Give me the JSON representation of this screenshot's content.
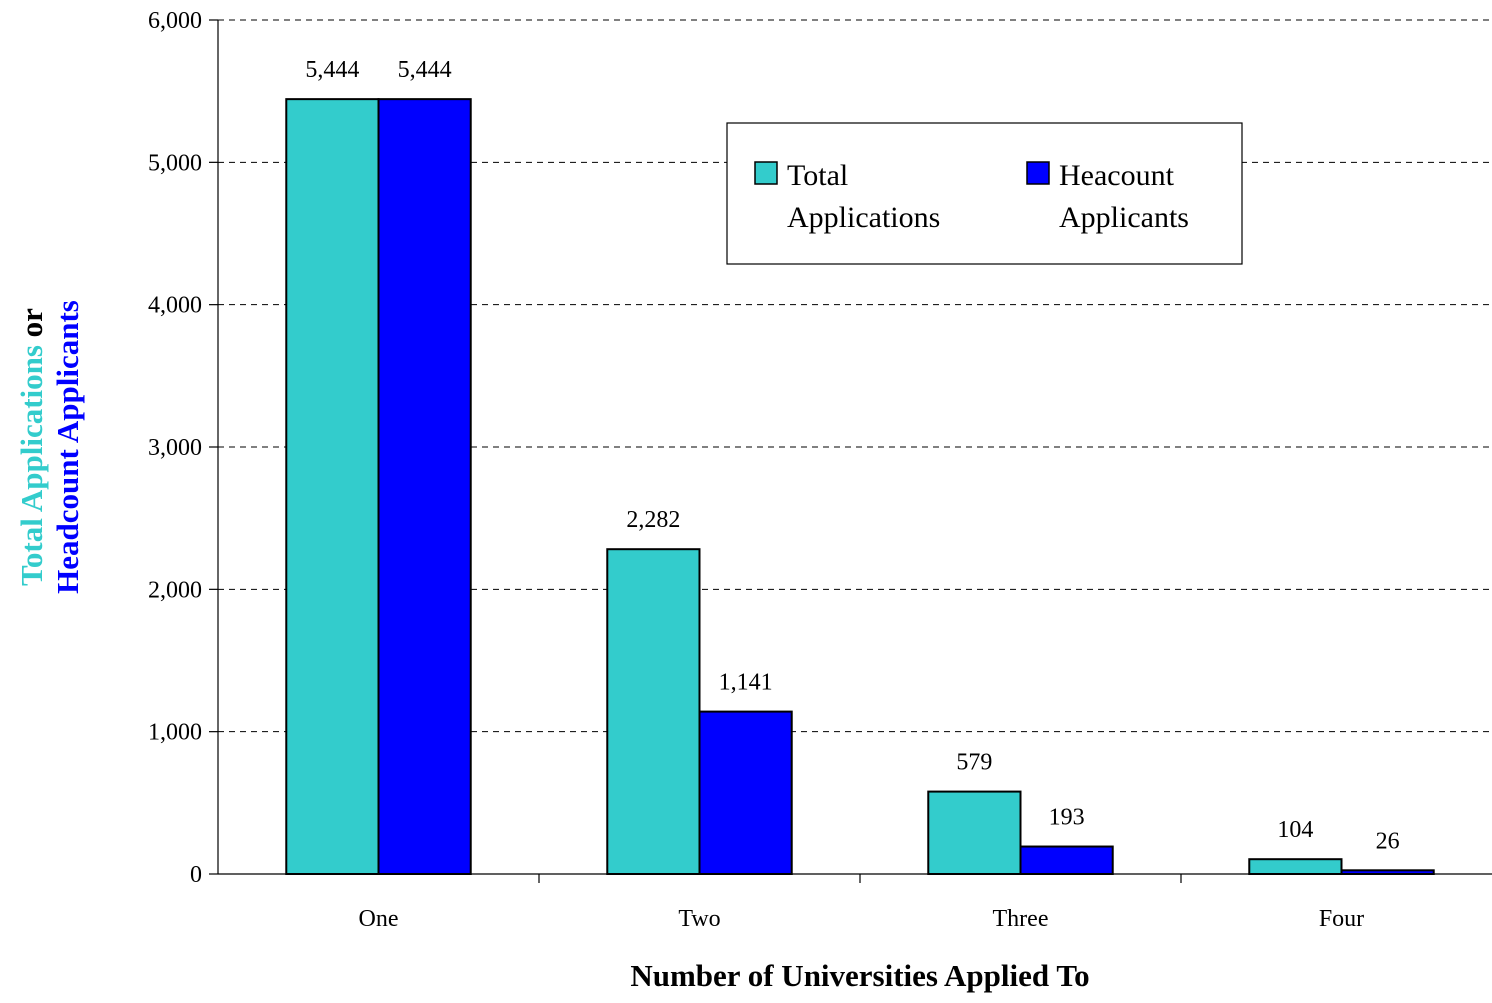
{
  "chart_data": {
    "type": "bar",
    "categories": [
      "One",
      "Two",
      "Three",
      "Four"
    ],
    "series": [
      {
        "name": "Total Applications",
        "values": [
          5444,
          2282,
          579,
          104
        ],
        "labels": [
          "5,444",
          "2,282",
          "579",
          "104"
        ],
        "color": "#33CCCC"
      },
      {
        "name": "Heacount Applicants",
        "values": [
          5444,
          1141,
          193,
          26
        ],
        "labels": [
          "5,444",
          "1,141",
          "193",
          "26"
        ],
        "color": "#0000FF"
      }
    ],
    "legend": {
      "placement": "top-right",
      "entries": [
        {
          "line1": "Total",
          "line2": "Applications"
        },
        {
          "line1": "Heacount",
          "line2": "Applicants"
        }
      ]
    },
    "xlabel": "Number of Universities Applied To",
    "ylabel": {
      "line1": [
        {
          "text": "Total Applications",
          "color": "#33CCCC"
        },
        {
          "text": " or",
          "color": "#000000"
        }
      ],
      "line2": [
        {
          "text": "Headcount Applicants",
          "color": "#0000FF"
        }
      ]
    },
    "ylim": [
      0,
      6000
    ],
    "yticks": [
      0,
      1000,
      2000,
      3000,
      4000,
      5000,
      6000
    ],
    "ytick_labels": [
      "0",
      "1,000",
      "2,000",
      "3,000",
      "4,000",
      "5,000",
      "6,000"
    ],
    "grid": true,
    "grid_style": "dashed"
  }
}
